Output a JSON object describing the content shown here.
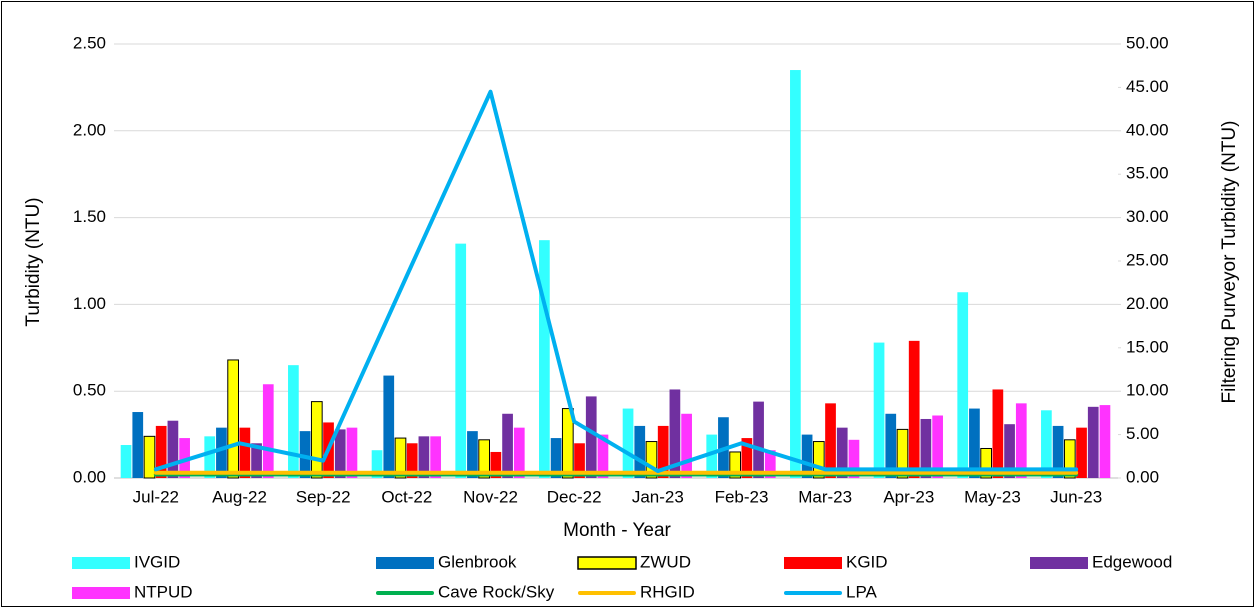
{
  "chart_data": {
    "type": "combo",
    "x_label": "Month - Year",
    "y_label": "Turbidity (NTU)",
    "y2_label": "Filtering Purveyor Turbidity (NTU)",
    "categories": [
      "Jul-22",
      "Aug-22",
      "Sep-22",
      "Oct-22",
      "Nov-22",
      "Dec-22",
      "Jan-23",
      "Feb-23",
      "Mar-23",
      "Apr-23",
      "May-23",
      "Jun-23"
    ],
    "ylim": [
      0,
      2.5
    ],
    "yticks": [
      {
        "value": 0,
        "label": "0.00"
      },
      {
        "value": 0.5,
        "label": "0.50"
      },
      {
        "value": 1,
        "label": "1.00"
      },
      {
        "value": 1.5,
        "label": "1.50"
      },
      {
        "value": 2,
        "label": "2.00"
      },
      {
        "value": 2.5,
        "label": "2.50"
      }
    ],
    "y2lim": [
      0,
      50
    ],
    "y2ticks": [
      {
        "value": 0,
        "label": "0.00"
      },
      {
        "value": 5,
        "label": "5.00"
      },
      {
        "value": 10,
        "label": "10.00"
      },
      {
        "value": 15,
        "label": "15.00"
      },
      {
        "value": 20,
        "label": "20.00"
      },
      {
        "value": 25,
        "label": "25.00"
      },
      {
        "value": 30,
        "label": "30.00"
      },
      {
        "value": 35,
        "label": "35.00"
      },
      {
        "value": 40,
        "label": "40.00"
      },
      {
        "value": 45,
        "label": "45.00"
      },
      {
        "value": 50,
        "label": "50.00"
      }
    ],
    "grid": true,
    "legend": "bottom",
    "series": [
      {
        "name": "IVGID",
        "type": "bar",
        "color": "#33FFFF",
        "values": [
          0.19,
          0.24,
          0.65,
          0.16,
          1.35,
          1.37,
          0.4,
          0.25,
          2.35,
          0.78,
          1.07,
          0.39
        ]
      },
      {
        "name": "Glenbrook",
        "type": "bar",
        "color": "#0070C0",
        "values": [
          0.38,
          0.29,
          0.27,
          0.59,
          0.27,
          0.23,
          0.3,
          0.35,
          0.25,
          0.37,
          0.4,
          0.3
        ]
      },
      {
        "name": "ZWUD",
        "type": "bar",
        "color": "#FFFF00",
        "outline": "#000000",
        "values": [
          0.24,
          0.68,
          0.44,
          0.23,
          0.22,
          0.4,
          0.21,
          0.15,
          0.21,
          0.28,
          0.17,
          0.22
        ]
      },
      {
        "name": "KGID",
        "type": "bar",
        "color": "#FF0000",
        "values": [
          0.3,
          0.29,
          0.32,
          0.2,
          0.15,
          0.2,
          0.3,
          0.23,
          0.43,
          0.79,
          0.51,
          0.29
        ]
      },
      {
        "name": "Edgewood",
        "type": "bar",
        "color": "#7030A0",
        "values": [
          0.33,
          0.2,
          0.28,
          0.24,
          0.37,
          0.47,
          0.51,
          0.44,
          0.29,
          0.34,
          0.31,
          0.41
        ]
      },
      {
        "name": "NTPUD",
        "type": "bar",
        "color": "#FF33FF",
        "values": [
          0.23,
          0.54,
          0.29,
          0.24,
          0.29,
          0.25,
          0.37,
          0.16,
          0.22,
          0.36,
          0.43,
          0.42
        ]
      },
      {
        "name": "Cave Rock/Sky",
        "type": "line",
        "color": "#00B050",
        "values": [
          0.02,
          0.02,
          0.02,
          0.02,
          0.02,
          0.02,
          0.02,
          0.02,
          0.02,
          0.02,
          0.02,
          0.02
        ]
      },
      {
        "name": "RHGID",
        "type": "line",
        "color": "#FFC000",
        "values": [
          0.03,
          0.03,
          0.03,
          0.03,
          0.03,
          0.03,
          0.03,
          0.03,
          0.03,
          0.03,
          0.03,
          0.03
        ]
      },
      {
        "name": "LPA",
        "type": "line",
        "axis": "y2",
        "color": "#00B0F0",
        "values": [
          1.0,
          4.0,
          2.0,
          23.3,
          44.5,
          6.5,
          0.8,
          4.0,
          1.0,
          1.0,
          1.0,
          1.0
        ]
      }
    ]
  }
}
